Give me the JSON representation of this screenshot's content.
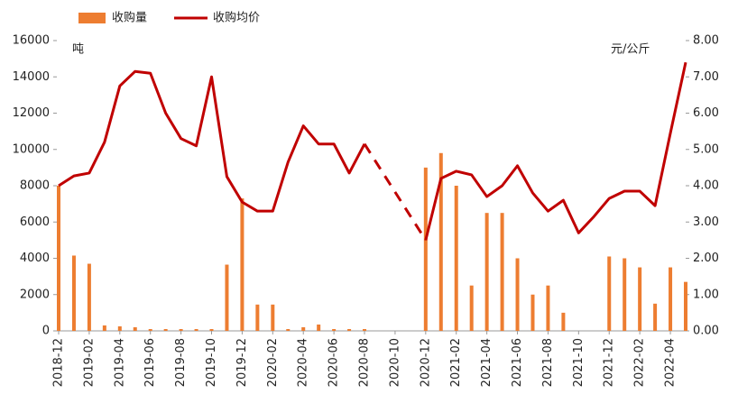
{
  "chart_data": {
    "type": "bar-line",
    "x": [
      "2018-12",
      "2019-01",
      "2019-02",
      "2019-03",
      "2019-04",
      "2019-05",
      "2019-06",
      "2019-07",
      "2019-08",
      "2019-09",
      "2019-10",
      "2019-11",
      "2019-12",
      "2020-01",
      "2020-02",
      "2020-03",
      "2020-04",
      "2020-05",
      "2020-06",
      "2020-07",
      "2020-08",
      "2020-09",
      "2020-10",
      "2020-11",
      "2020-12",
      "2021-01",
      "2021-02",
      "2021-03",
      "2021-04",
      "2021-05",
      "2021-06",
      "2021-07",
      "2021-08",
      "2021-09",
      "2021-10",
      "2021-11",
      "2021-12",
      "2022-01",
      "2022-02",
      "2022-03",
      "2022-04",
      "2022-05"
    ],
    "xticks": [
      "2018-12",
      "2019-02",
      "2019-04",
      "2019-06",
      "2019-08",
      "2019-10",
      "2019-12",
      "2020-02",
      "2020-04",
      "2020-06",
      "2020-08",
      "2020-10",
      "2020-12",
      "2021-02",
      "2021-04",
      "2021-06",
      "2021-08",
      "2021-10",
      "2021-12",
      "2022-02",
      "2022-04"
    ],
    "series": [
      {
        "name": "收购量",
        "color": "#ED7D31",
        "kind": "bar",
        "values": [
          8000,
          4150,
          3700,
          300,
          250,
          200,
          100,
          100,
          100,
          100,
          100,
          3650,
          7300,
          1450,
          1450,
          100,
          200,
          350,
          100,
          100,
          100,
          0,
          0,
          0,
          9000,
          9800,
          8000,
          2500,
          6500,
          6500,
          4000,
          2000,
          2500,
          1000,
          0,
          0,
          4100,
          4000,
          3500,
          1500,
          3500,
          2700
        ]
      },
      {
        "name": "收购均价",
        "color": "#C00000",
        "kind": "line",
        "axis": "y2",
        "values": [
          4.0,
          4.27,
          4.35,
          5.2,
          6.75,
          7.15,
          7.1,
          6.0,
          5.3,
          5.1,
          7.0,
          4.25,
          3.55,
          3.3,
          3.3,
          4.65,
          5.65,
          5.15,
          5.15,
          4.35,
          5.15,
          null,
          null,
          null,
          2.5,
          4.2,
          4.4,
          4.3,
          3.7,
          4.0,
          4.55,
          3.8,
          3.3,
          3.6,
          2.7,
          3.15,
          3.65,
          3.85,
          3.85,
          3.45,
          5.45,
          7.4
        ]
      }
    ],
    "gap_style": "dashed",
    "y_unit": "吨",
    "y2_unit": "元/公斤",
    "ylim": [
      0,
      16000
    ],
    "yticks": [
      0,
      2000,
      4000,
      6000,
      8000,
      10000,
      12000,
      14000,
      16000
    ],
    "y2lim": [
      0,
      8
    ],
    "y2ticks": [
      {
        "value": 0,
        "label": "0.00"
      },
      {
        "value": 1,
        "label": "1.00"
      },
      {
        "value": 2,
        "label": "2.00"
      },
      {
        "value": 3,
        "label": "3.00"
      },
      {
        "value": 4,
        "label": "4.00"
      },
      {
        "value": 5,
        "label": "5.00"
      },
      {
        "value": 6,
        "label": "6.00"
      },
      {
        "value": 7,
        "label": "7.00"
      },
      {
        "value": 8,
        "label": "8.00"
      }
    ]
  }
}
